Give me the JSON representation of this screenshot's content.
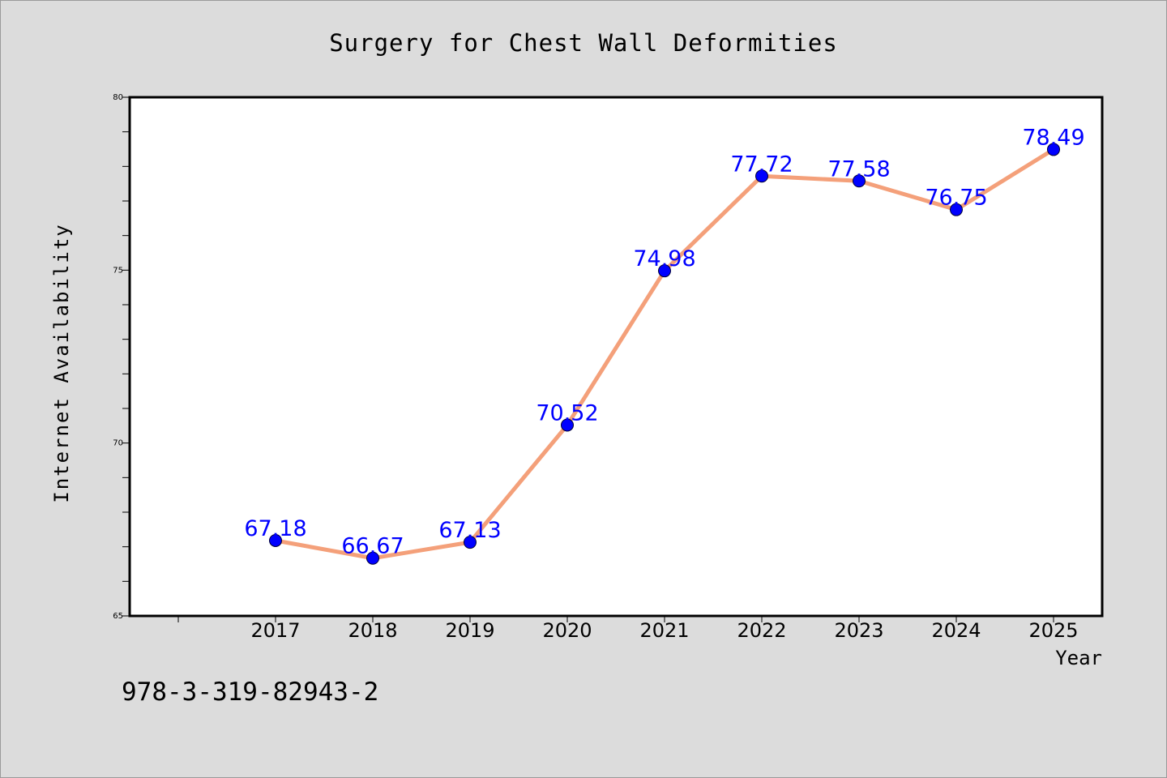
{
  "chart_data": {
    "type": "line",
    "title": "Surgery for Chest Wall Deformities",
    "xlabel": "Year",
    "ylabel": "Internet Availability",
    "x": [
      "2017",
      "2018",
      "2019",
      "2020",
      "2021",
      "2022",
      "2023",
      "2024",
      "2025"
    ],
    "series": [
      {
        "values": [
          67.18,
          66.67,
          67.13,
          70.52,
          74.98,
          77.72,
          77.58,
          76.75,
          78.49
        ],
        "data_labels": [
          "67.18",
          "66.67",
          "67.13",
          "70.52",
          "74.98",
          "77.72",
          "77.58",
          "76.75",
          "78.49"
        ],
        "line_color": "#f4a07a",
        "marker_color": "#0000ff"
      }
    ],
    "ylim": [
      65,
      80
    ],
    "yticks": [
      "65",
      "70",
      "75",
      "80"
    ],
    "grid": false,
    "legend": "none"
  },
  "footnote": "978-3-319-82943-2",
  "colors": {
    "background": "#dcdcdc",
    "plot_background": "#ffffff",
    "line": "#f4a07a",
    "marker": "#0000ff",
    "data_label": "#0000ff"
  }
}
